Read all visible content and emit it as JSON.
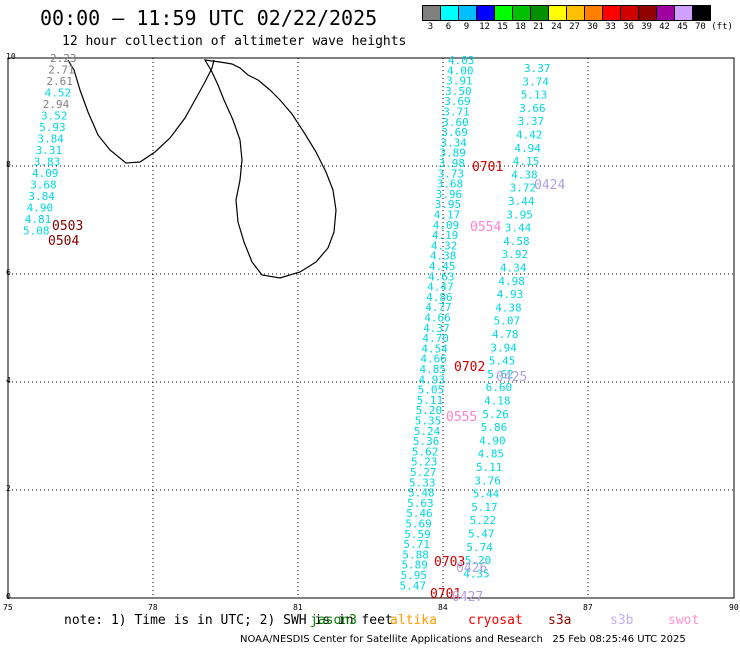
{
  "header": {
    "title": "00:00 – 11:59 UTC 02/22/2025",
    "subtitle": "12 hour collection of altimeter wave heights"
  },
  "color_scale": {
    "labels": [
      "3",
      "6",
      "9",
      "12",
      "15",
      "18",
      "21",
      "24",
      "27",
      "30",
      "33",
      "36",
      "39",
      "42",
      "45",
      "70 (ft)"
    ],
    "colors": [
      "#808080",
      "#00ffff",
      "#00bfff",
      "#0000ff",
      "#00ff00",
      "#00c000",
      "#009000",
      "#ffff00",
      "#ffc000",
      "#ff8000",
      "#ff0000",
      "#d00000",
      "#900000",
      "#a000a0",
      "#d0a0ff",
      "#000000"
    ]
  },
  "axes": {
    "x_ticks": [
      "75",
      "78",
      "81",
      "84",
      "87",
      "90"
    ],
    "y_ticks": [
      "10",
      "8",
      "6",
      "4",
      "2",
      "0"
    ]
  },
  "time_labels": [
    {
      "text": "0503",
      "color": "#800000"
    },
    {
      "text": "0504",
      "color": "#800000"
    },
    {
      "text": "0701",
      "color": "#d00000"
    },
    {
      "text": "0424",
      "color": "#b0a0e0"
    },
    {
      "text": "0554",
      "color": "#ff80d0"
    },
    {
      "text": "0702",
      "color": "#d00000"
    },
    {
      "text": "0425",
      "color": "#b0a0e0"
    },
    {
      "text": "0555",
      "color": "#ff80d0"
    },
    {
      "text": "0703",
      "color": "#d00000"
    },
    {
      "text": "0426",
      "color": "#b0a0e0"
    },
    {
      "text": "0701",
      "color": "#d00000"
    },
    {
      "text": "0427",
      "color": "#b0a0e0"
    }
  ],
  "wave_values": {
    "left_track": [
      "2.23",
      "2.71",
      "2.61",
      "4.52",
      "2.94",
      "3.52",
      "5.93",
      "3.84",
      "3.31",
      "3.83",
      "4.09",
      "3.68",
      "3.84",
      "4.90",
      "4.81",
      "5.08"
    ],
    "right_track": [
      "3.37",
      "3.74",
      "5.13",
      "3.66",
      "3.37",
      "4.42",
      "4.94",
      "4.15",
      "4.38",
      "3.72",
      "3.44",
      "3.95",
      "3.44",
      "4.58",
      "3.92",
      "4.34",
      "4.98",
      "4.93",
      "4.38",
      "5.07",
      "4.78",
      "3.94",
      "5.45",
      "5.62",
      "6.60",
      "4.18",
      "5.26",
      "5.86",
      "4.90",
      "4.85",
      "5.11",
      "3.76",
      "5.44",
      "5.17",
      "5.22",
      "5.47",
      "5.74",
      "5.20",
      "4.35"
    ],
    "mid_track": [
      "4.03",
      "4.00",
      "3.91",
      "3.50",
      "3.69",
      "3.71",
      "3.60",
      "3.69",
      "3.34",
      "3.89",
      "3.98",
      "3.73",
      "3.68",
      "3.96",
      "3.95",
      "4.17",
      "4.09",
      "4.19",
      "4.32",
      "4.38",
      "4.45",
      "4.63",
      "4.47",
      "4.86",
      "4.77",
      "4.66",
      "4.37",
      "4.70",
      "4.54",
      "4.66",
      "4.85",
      "4.93",
      "5.05",
      "5.11",
      "5.20",
      "5.35",
      "5.24",
      "5.36",
      "5.62",
      "5.23",
      "5.27",
      "5.33",
      "5.48",
      "5.63",
      "5.46",
      "5.69",
      "5.59",
      "5.71",
      "5.88",
      "5.89",
      "5.95",
      "5.47"
    ]
  },
  "footer": {
    "note": "note: 1) Time is in UTC; 2) SWH is in feet",
    "satellites": [
      {
        "name": "jason3",
        "color": "#008000"
      },
      {
        "name": "altika",
        "color": "#ff9900"
      },
      {
        "name": "cryosat",
        "color": "#ff0000"
      },
      {
        "name": "s3a",
        "color": "#900000"
      },
      {
        "name": "s3b",
        "color": "#c0b0f0"
      },
      {
        "name": "swot",
        "color": "#ff90d0"
      }
    ],
    "credit": "NOAA/NESDIS Center for Satellite Applications and Research",
    "timestamp": "25 Feb 08:25:46 UTC 2025"
  }
}
